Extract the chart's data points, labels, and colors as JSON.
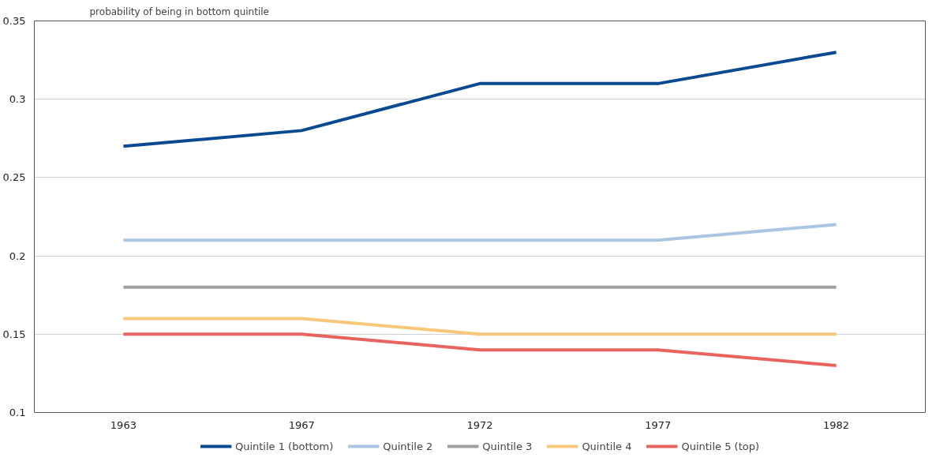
{
  "chart_data": {
    "type": "line",
    "ylabel": "probability of being in bottom quintile",
    "categories": [
      "1963",
      "1967",
      "1972",
      "1977",
      "1982"
    ],
    "series": [
      {
        "name": "Quintile 1 (bottom)",
        "color": "#0a4a90",
        "values": [
          0.27,
          0.28,
          0.31,
          0.31,
          0.33
        ]
      },
      {
        "name": "Quintile 2",
        "color": "#a9c6e2",
        "values": [
          0.21,
          0.21,
          0.21,
          0.21,
          0.22
        ]
      },
      {
        "name": "Quintile 3",
        "color": "#a0a0a0",
        "values": [
          0.18,
          0.18,
          0.18,
          0.18,
          0.18
        ]
      },
      {
        "name": "Quintile 4",
        "color": "#f7c87a",
        "values": [
          0.16,
          0.16,
          0.15,
          0.15,
          0.15
        ]
      },
      {
        "name": "Quintile 5 (top)",
        "color": "#e8645f",
        "values": [
          0.15,
          0.15,
          0.14,
          0.14,
          0.13
        ]
      }
    ],
    "ylim": [
      0.1,
      0.35
    ],
    "yticks": [
      {
        "value": 0.1,
        "label": "0.1"
      },
      {
        "value": 0.15,
        "label": "0.15"
      },
      {
        "value": 0.2,
        "label": "0.2"
      },
      {
        "value": 0.25,
        "label": "0.25"
      },
      {
        "value": 0.3,
        "label": "0.3"
      },
      {
        "value": 0.35,
        "label": "0.35"
      }
    ],
    "grid": "y",
    "legend": "bottom",
    "marker": "none",
    "line_style": "solid"
  }
}
